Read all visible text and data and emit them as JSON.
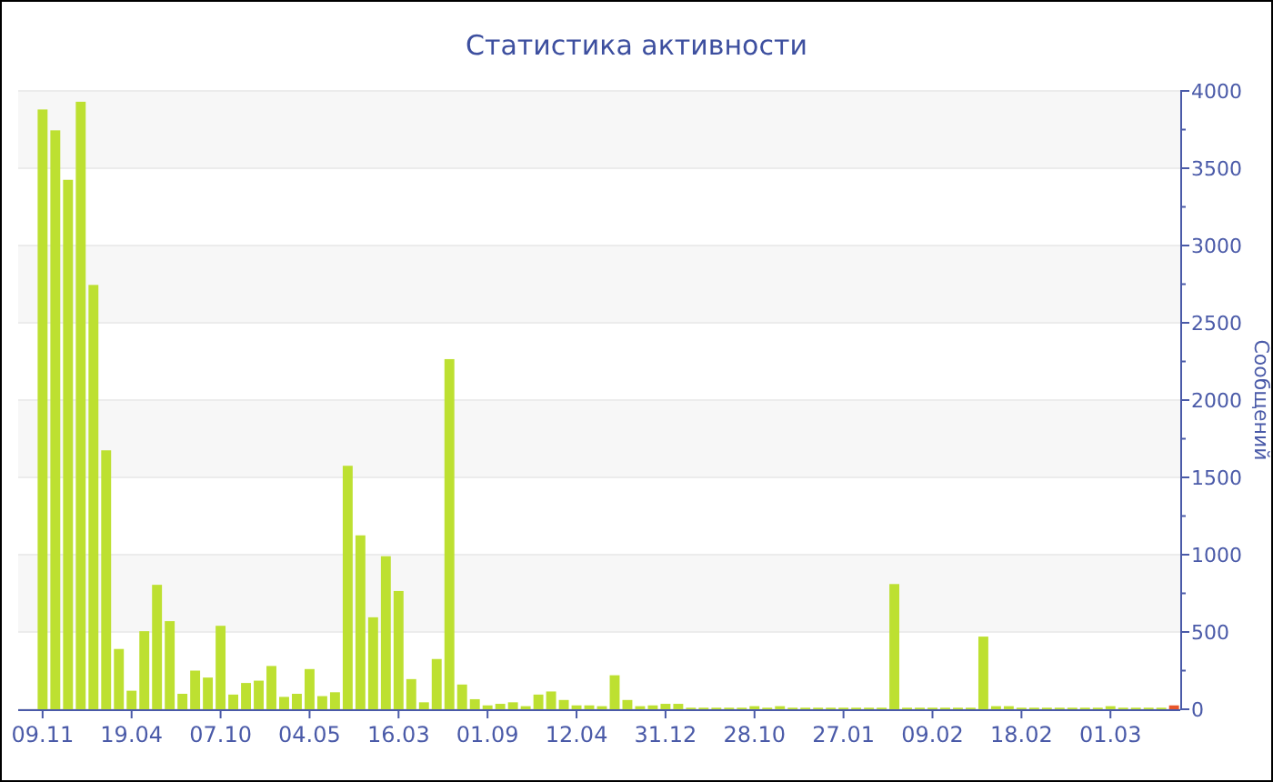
{
  "chart_data": {
    "type": "bar",
    "title": "Статистика активности",
    "ylabel": "Сообщений",
    "categories": [
      "09.11",
      null,
      null,
      null,
      null,
      null,
      null,
      "19.04",
      null,
      null,
      null,
      null,
      null,
      null,
      "07.10",
      null,
      null,
      null,
      null,
      null,
      null,
      "04.05",
      null,
      null,
      null,
      null,
      null,
      null,
      "16.03",
      null,
      null,
      null,
      null,
      null,
      null,
      "01.09",
      null,
      null,
      null,
      null,
      null,
      null,
      "12.04",
      null,
      null,
      null,
      null,
      null,
      null,
      "31.12",
      null,
      null,
      null,
      null,
      null,
      null,
      "28.10",
      null,
      null,
      null,
      null,
      null,
      null,
      "27.01",
      null,
      null,
      null,
      null,
      null,
      null,
      "09.02",
      null,
      null,
      null,
      null,
      null,
      null,
      "18.02",
      null,
      null,
      null,
      null,
      null,
      null,
      "01.03",
      null,
      null,
      null,
      null,
      null
    ],
    "values": [
      3880,
      3745,
      3425,
      3930,
      2745,
      1675,
      390,
      120,
      505,
      805,
      570,
      100,
      250,
      205,
      540,
      95,
      170,
      185,
      280,
      80,
      100,
      260,
      85,
      110,
      1575,
      1125,
      595,
      990,
      765,
      195,
      45,
      325,
      2265,
      160,
      65,
      25,
      35,
      45,
      20,
      95,
      115,
      60,
      25,
      25,
      20,
      220,
      60,
      20,
      25,
      35,
      35,
      10,
      10,
      10,
      10,
      10,
      20,
      10,
      20,
      10,
      10,
      10,
      10,
      10,
      10,
      10,
      10,
      810,
      10,
      10,
      10,
      10,
      10,
      10,
      470,
      20,
      20,
      10,
      10,
      10,
      10,
      10,
      10,
      10,
      20,
      10,
      10,
      10,
      10,
      25
    ],
    "colors": [
      "#bde031",
      "#bde031",
      "#bde031",
      "#bde031",
      "#bde031",
      "#bde031",
      "#bde031",
      "#bde031",
      "#bde031",
      "#bde031",
      "#bde031",
      "#bde031",
      "#bde031",
      "#bde031",
      "#bde031",
      "#bde031",
      "#bde031",
      "#bde031",
      "#bde031",
      "#bde031",
      "#bde031",
      "#bde031",
      "#bde031",
      "#bde031",
      "#bde031",
      "#bde031",
      "#bde031",
      "#bde031",
      "#bde031",
      "#bde031",
      "#bde031",
      "#bde031",
      "#bde031",
      "#bde031",
      "#bde031",
      "#bde031",
      "#bde031",
      "#bde031",
      "#bde031",
      "#bde031",
      "#bde031",
      "#bde031",
      "#bde031",
      "#bde031",
      "#bde031",
      "#bde031",
      "#bde031",
      "#bde031",
      "#bde031",
      "#bde031",
      "#bde031",
      "#bde031",
      "#bde031",
      "#bde031",
      "#bde031",
      "#bde031",
      "#bde031",
      "#bde031",
      "#bde031",
      "#bde031",
      "#bde031",
      "#bde031",
      "#bde031",
      "#bde031",
      "#bde031",
      "#bde031",
      "#bde031",
      "#bde031",
      "#bde031",
      "#bde031",
      "#bde031",
      "#bde031",
      "#bde031",
      "#bde031",
      "#bde031",
      "#bde031",
      "#bde031",
      "#bde031",
      "#bde031",
      "#bde031",
      "#bde031",
      "#bde031",
      "#bde031",
      "#bde031",
      "#bde031",
      "#bde031",
      "#bde031",
      "#bde031",
      "#bde031",
      "#e8562a"
    ],
    "ylim": [
      0,
      4000
    ],
    "yticks": [
      0,
      500,
      1000,
      1500,
      2000,
      2500,
      3000,
      3500,
      4000
    ],
    "grid": "y"
  }
}
